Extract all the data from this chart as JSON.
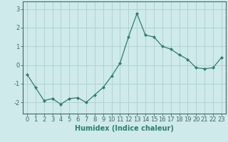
{
  "x": [
    0,
    1,
    2,
    3,
    4,
    5,
    6,
    7,
    8,
    9,
    10,
    11,
    12,
    13,
    14,
    15,
    16,
    17,
    18,
    19,
    20,
    21,
    22,
    23
  ],
  "y": [
    -0.5,
    -1.2,
    -1.9,
    -1.8,
    -2.1,
    -1.8,
    -1.75,
    -2.0,
    -1.6,
    -1.2,
    -0.6,
    0.1,
    1.5,
    2.75,
    1.6,
    1.5,
    1.0,
    0.85,
    0.55,
    0.3,
    -0.15,
    -0.2,
    -0.15,
    0.4
  ],
  "line_color": "#2e7d6e",
  "marker": "D",
  "marker_size": 2,
  "bg_color": "#ceeaea",
  "grid_color": "#aecece",
  "xlabel": "Humidex (Indice chaleur)",
  "ylim": [
    -2.6,
    3.4
  ],
  "xlim": [
    -0.5,
    23.5
  ],
  "yticks": [
    -2,
    -1,
    0,
    1,
    2,
    3
  ],
  "xticks": [
    0,
    1,
    2,
    3,
    4,
    5,
    6,
    7,
    8,
    9,
    10,
    11,
    12,
    13,
    14,
    15,
    16,
    17,
    18,
    19,
    20,
    21,
    22,
    23
  ],
  "tick_fontsize": 6,
  "label_fontsize": 7,
  "axes_color": "#446666"
}
